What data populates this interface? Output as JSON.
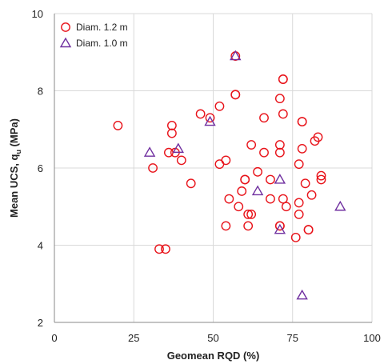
{
  "chart_data": {
    "type": "scatter",
    "xlabel": "Geomean RQD (%)",
    "ylabel_main": "Mean UCS, q",
    "ylabel_sub": "u",
    "ylabel_unit": " (MPa)",
    "xlim": [
      0,
      100
    ],
    "ylim": [
      2,
      10
    ],
    "xticks": [
      "0",
      "25",
      "50",
      "75",
      "100"
    ],
    "yticks": [
      "2",
      "4",
      "6",
      "8",
      "10"
    ],
    "grid": true,
    "legend_position": "top-left",
    "colors": {
      "series1": "#e8131a",
      "series2": "#7030a0",
      "grid": "#d9d9d9",
      "axis": "#888888"
    },
    "series": [
      {
        "name": "Diam. 1.2 m",
        "marker": "circle",
        "points": [
          [
            20,
            7.1
          ],
          [
            31,
            6.0
          ],
          [
            33,
            3.9
          ],
          [
            35,
            3.9
          ],
          [
            36,
            6.4
          ],
          [
            37,
            7.1
          ],
          [
            37,
            6.9
          ],
          [
            38,
            6.4
          ],
          [
            40,
            6.2
          ],
          [
            43,
            5.6
          ],
          [
            46,
            7.4
          ],
          [
            49,
            7.3
          ],
          [
            52,
            6.1
          ],
          [
            52,
            7.6
          ],
          [
            54,
            6.2
          ],
          [
            54,
            4.5
          ],
          [
            55,
            5.2
          ],
          [
            57,
            8.9
          ],
          [
            57,
            7.9
          ],
          [
            57,
            7.9
          ],
          [
            58,
            5.0
          ],
          [
            59,
            5.4
          ],
          [
            60,
            5.7
          ],
          [
            60,
            5.7
          ],
          [
            61,
            4.5
          ],
          [
            61,
            4.8
          ],
          [
            62,
            4.8
          ],
          [
            62,
            6.6
          ],
          [
            64,
            5.9
          ],
          [
            66,
            6.4
          ],
          [
            66,
            7.3
          ],
          [
            68,
            5.7
          ],
          [
            68,
            5.2
          ],
          [
            71,
            6.4
          ],
          [
            71,
            6.6
          ],
          [
            71,
            7.8
          ],
          [
            71,
            4.5
          ],
          [
            71,
            4.5
          ],
          [
            72,
            8.3
          ],
          [
            72,
            8.3
          ],
          [
            72,
            7.4
          ],
          [
            72,
            5.2
          ],
          [
            73,
            5.0
          ],
          [
            76,
            4.2
          ],
          [
            77,
            6.1
          ],
          [
            77,
            5.1
          ],
          [
            77,
            4.8
          ],
          [
            78,
            7.2
          ],
          [
            78,
            7.2
          ],
          [
            78,
            6.5
          ],
          [
            79,
            5.6
          ],
          [
            80,
            4.4
          ],
          [
            80,
            4.4
          ],
          [
            81,
            5.3
          ],
          [
            82,
            6.7
          ],
          [
            83,
            6.8
          ],
          [
            84,
            5.8
          ],
          [
            84,
            5.7
          ]
        ]
      },
      {
        "name": "Diam. 1.0 m",
        "marker": "triangle",
        "points": [
          [
            30,
            6.4
          ],
          [
            39,
            6.5
          ],
          [
            49,
            7.2
          ],
          [
            57,
            8.9
          ],
          [
            64,
            5.4
          ],
          [
            71,
            5.7
          ],
          [
            71,
            4.4
          ],
          [
            78,
            2.7
          ],
          [
            90,
            5.0
          ]
        ]
      }
    ]
  }
}
